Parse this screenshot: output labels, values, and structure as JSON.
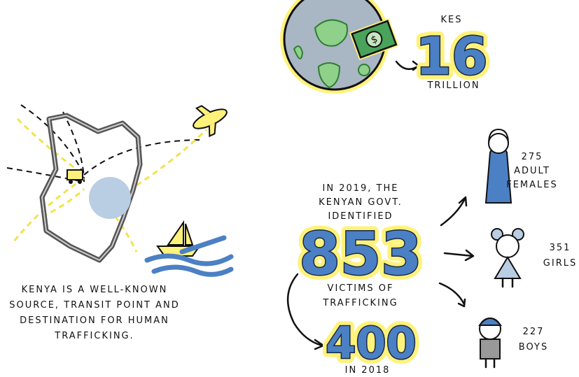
{
  "money": {
    "currency": "KES",
    "amount": 16,
    "unit": "TRILLION"
  },
  "kenya": {
    "caption": [
      "KENYA IS A WELL-KNOWN",
      "SOURCE, TRANSIT POINT AND",
      "DESTINATION FOR HUMAN",
      "TRAFFICKING."
    ]
  },
  "victims": {
    "intro": [
      "IN 2019, THE",
      "KENYAN GOVT.",
      "IDENTIFIED"
    ],
    "count_2019": 853,
    "label": [
      "VICTIMS OF",
      "TRAFFICKING"
    ],
    "count_2018": 400,
    "label_2018": "IN 2018"
  },
  "breakdown": [
    {
      "count": 275,
      "label": [
        "ADULT",
        "FEMALES"
      ]
    },
    {
      "count": 351,
      "label": [
        "GIRLS"
      ]
    },
    {
      "count": 227,
      "label": [
        "BOYS"
      ]
    }
  ]
}
